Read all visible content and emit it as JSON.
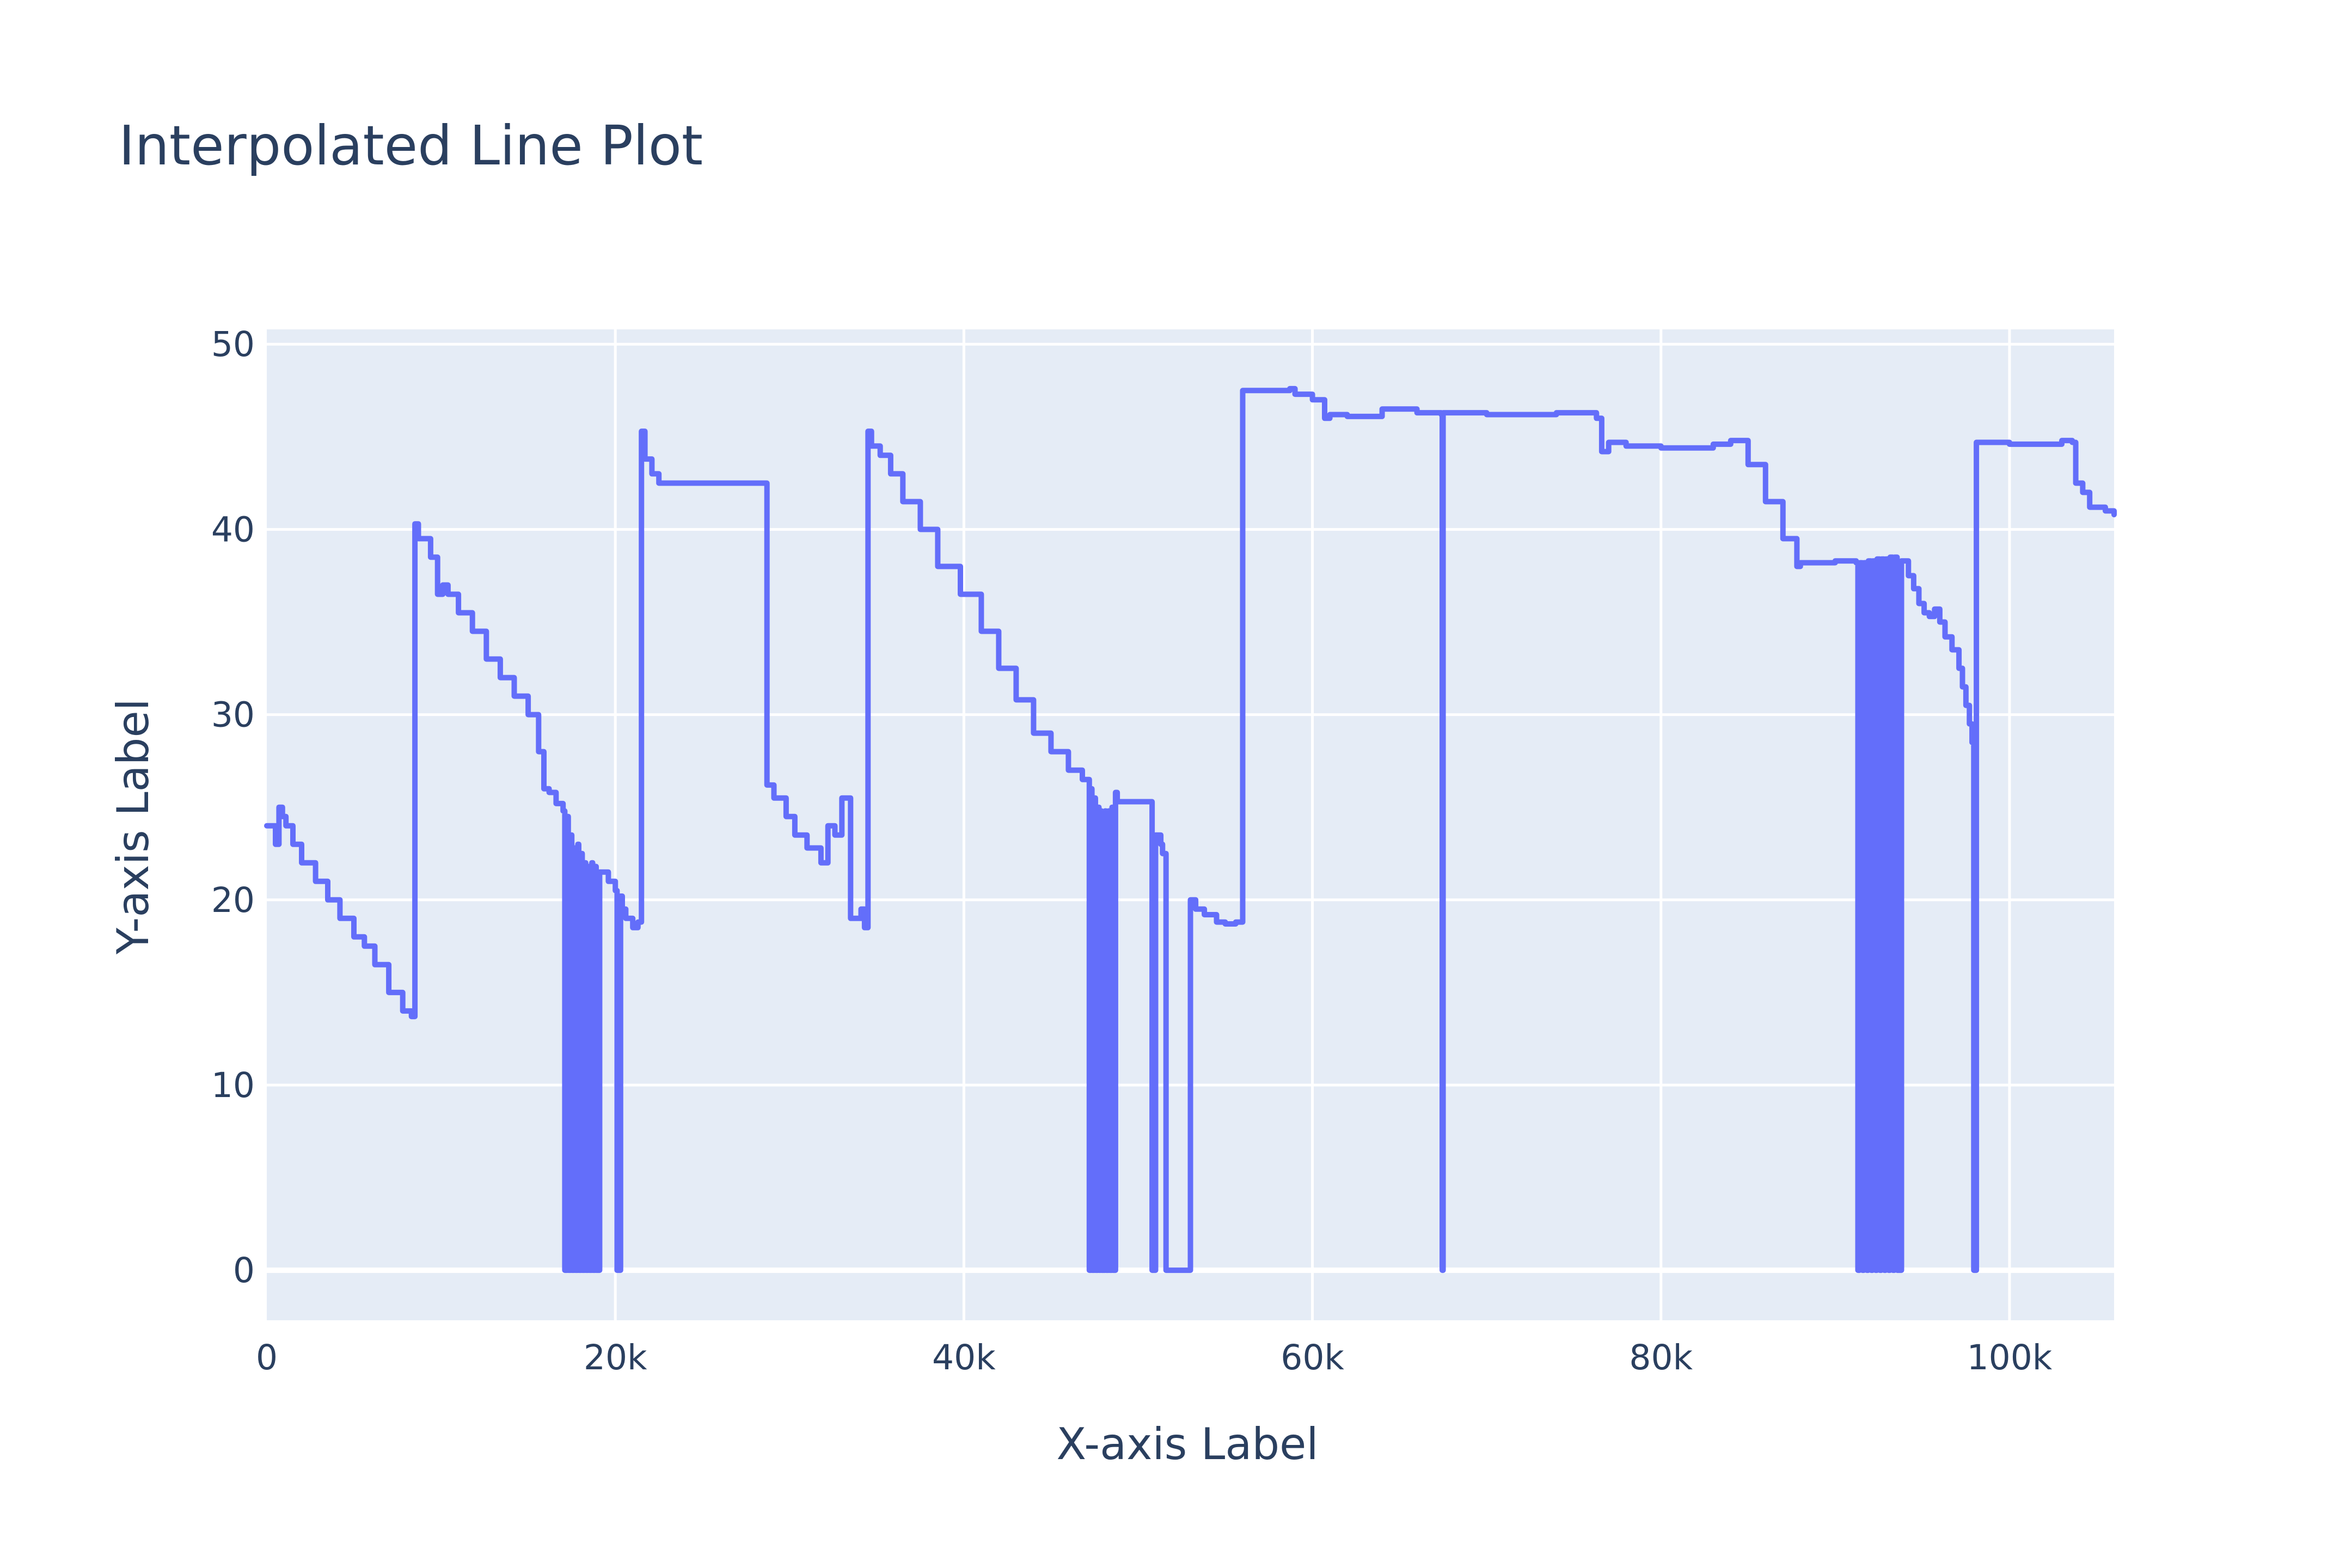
{
  "chart_data": {
    "type": "line",
    "title": "Interpolated Line Plot",
    "xlabel": "X-axis Label",
    "ylabel": "Y-axis Label",
    "xlim": [
      0,
      106000
    ],
    "ylim": [
      -2.7,
      50.8
    ],
    "xticks": [
      0,
      20000,
      40000,
      60000,
      80000,
      100000
    ],
    "xtick_labels": [
      "0",
      "20k",
      "40k",
      "60k",
      "80k",
      "100k"
    ],
    "yticks": [
      0,
      10,
      20,
      30,
      40,
      50
    ],
    "ytick_labels": [
      "0",
      "10",
      "20",
      "30",
      "40",
      "50"
    ],
    "grid": true,
    "legend": "none",
    "colors": {
      "line": "#636efa",
      "plot_bg": "#e5ecf6",
      "paper_bg": "#ffffff",
      "text": "#2a3f5f"
    },
    "series": [
      {
        "shape": "hv",
        "x": [
          0,
          500,
          700,
          900,
          1100,
          1500,
          2000,
          2800,
          3500,
          4200,
          5000,
          5600,
          6200,
          7000,
          7800,
          8300,
          8500,
          8700,
          9400,
          9800,
          10100,
          10400,
          11000,
          11800,
          12600,
          13400,
          14200,
          15000,
          15600,
          15900,
          16200,
          16600,
          17000,
          17100,
          17250,
          17300,
          17450,
          17500,
          17650,
          17700,
          17850,
          17900,
          18050,
          18100,
          18250,
          18300,
          18450,
          18500,
          18650,
          18700,
          18850,
          18900,
          19100,
          19600,
          20000,
          20100,
          20300,
          20400,
          20600,
          21000,
          21300,
          21500,
          21700,
          22100,
          22500,
          28500,
          28700,
          29100,
          29800,
          30300,
          31000,
          31800,
          32200,
          32600,
          33000,
          33500,
          34100,
          34300,
          34500,
          34700,
          35200,
          35800,
          36500,
          37500,
          38500,
          39800,
          41000,
          42000,
          43000,
          44000,
          45000,
          46000,
          46800,
          47200,
          47300,
          47350,
          47500,
          47550,
          47700,
          47750,
          47850,
          47900,
          48100,
          48150,
          48300,
          48350,
          48500,
          48550,
          48700,
          48800,
          48900,
          49000,
          49200,
          49300,
          49400,
          50000,
          50500,
          50800,
          51000,
          51300,
          51400,
          51600,
          53000,
          53300,
          53800,
          54500,
          55000,
          55600,
          56000,
          58000,
          58700,
          59000,
          60000,
          60700,
          61000,
          62000,
          64000,
          66000,
          67400,
          67450,
          67500,
          68000,
          70000,
          74000,
          76300,
          76600,
          77000,
          78000,
          80000,
          83000,
          84000,
          85000,
          86000,
          87000,
          87800,
          88000,
          90000,
          91200,
          91300,
          91400,
          91550,
          91650,
          91800,
          91900,
          92050,
          92150,
          92300,
          92400,
          92550,
          92650,
          92800,
          92900,
          93050,
          93150,
          93300,
          93400,
          93550,
          93800,
          94200,
          94500,
          94800,
          95100,
          95400,
          95700,
          96000,
          96300,
          96700,
          97100,
          97300,
          97500,
          97700,
          97850,
          97950,
          98000,
          98100,
          100000,
          103000,
          103600,
          103800,
          104200,
          104600,
          105500,
          106000
        ],
        "y": [
          24,
          23,
          25,
          24.5,
          24,
          23,
          22,
          21,
          20,
          19,
          18,
          17.5,
          16.5,
          15,
          14,
          13.7,
          40.3,
          39.5,
          38.5,
          36.5,
          37,
          36.5,
          35.5,
          34.5,
          33,
          32,
          31,
          30,
          28,
          26,
          25.8,
          25.2,
          24.8,
          0,
          24.5,
          0,
          23.5,
          0,
          22.8,
          0,
          23,
          0,
          22.5,
          0,
          22,
          0,
          21.8,
          0,
          22,
          0,
          21.8,
          0,
          21.5,
          21,
          20.5,
          0,
          20.2,
          19.5,
          19,
          18.5,
          18.8,
          45.3,
          43.8,
          43,
          42.5,
          42.5,
          26.2,
          25.5,
          24.5,
          23.5,
          22.8,
          22,
          24,
          23.5,
          25.5,
          19,
          19.5,
          18.5,
          45.3,
          44.5,
          44,
          43,
          41.5,
          40,
          38,
          36.5,
          34.5,
          32.5,
          30.8,
          29,
          28,
          27,
          26.5,
          0,
          26,
          0,
          25.5,
          0,
          25,
          0,
          24.8,
          0,
          24.8,
          0,
          24.8,
          0,
          25,
          0,
          25.8,
          25.3,
          25.3,
          25.3,
          25.3,
          25.3,
          25.3,
          25.3,
          25.3,
          0,
          23.5,
          23,
          22.5,
          0,
          20,
          19.5,
          19.2,
          18.8,
          18.7,
          18.8,
          47.5,
          47.5,
          47.6,
          47.3,
          47,
          46,
          46.2,
          46.1,
          46.5,
          46.3,
          46.2,
          0,
          46.3,
          46.3,
          46.2,
          46.3,
          46,
          44.2,
          44.7,
          44.5,
          44.4,
          44.6,
          44.8,
          43.5,
          41.5,
          39.5,
          38,
          38.2,
          38.3,
          38.2,
          0,
          38.2,
          0,
          38.2,
          0,
          38.3,
          0,
          38.3,
          0,
          38.4,
          0,
          38.4,
          0,
          38.4,
          0,
          38.5,
          0,
          38.5,
          0,
          38.3,
          37.5,
          36.8,
          36,
          35.5,
          35.3,
          35.7,
          35,
          34.2,
          33.5,
          32.5,
          31.5,
          30.5,
          29.5,
          28.5,
          0,
          0,
          44.7,
          44.6,
          44.8,
          44.7,
          42.5,
          42,
          41.2,
          41,
          40.8
        ]
      }
    ]
  }
}
